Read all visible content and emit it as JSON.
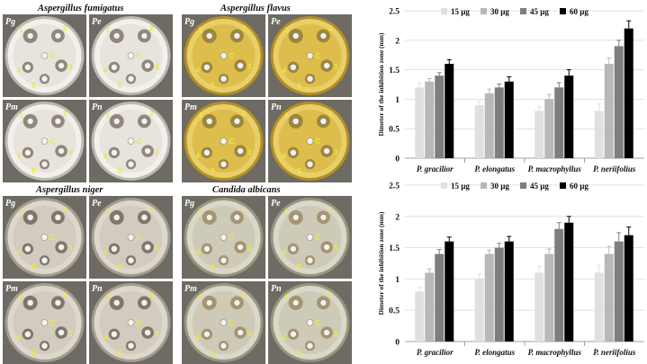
{
  "photo_groups": [
    {
      "id": "fumigatus",
      "title": "Aspergillus fumigatus",
      "agar": "#e4e1da",
      "agar_edge": "#bdb9b0",
      "medium": "#f2f0ea",
      "growth": "#4a3b2c",
      "panels": [
        {
          "label": "Pg",
          "numbers": [
            "1",
            "2",
            "3",
            "4",
            "5"
          ]
        },
        {
          "label": "Pe",
          "numbers": [
            "1",
            "2",
            "3",
            "4",
            "5"
          ]
        },
        {
          "label": "Pm",
          "numbers": [
            "1",
            "2",
            "3",
            "4",
            "5"
          ]
        },
        {
          "label": "Pn",
          "numbers": [
            "1",
            "2",
            "3",
            "4",
            "5"
          ]
        }
      ]
    },
    {
      "id": "flavus",
      "title": "Aspergillus flavus",
      "agar": "#d9b845",
      "agar_edge": "#b38f25",
      "medium": "#e8cf6a",
      "growth": "#6a5a2a",
      "panels": [
        {
          "label": "Pg",
          "numbers": [
            "1",
            "2",
            "3",
            "4",
            "5"
          ]
        },
        {
          "label": "Pe",
          "numbers": [
            "1",
            "2",
            "3",
            "4",
            "5"
          ]
        },
        {
          "label": "Pm",
          "numbers": [
            "1",
            "2",
            "3",
            "4",
            "5"
          ]
        },
        {
          "label": "Pn",
          "numbers": [
            "1",
            "2",
            "3",
            "4",
            "5"
          ]
        }
      ]
    },
    {
      "id": "niger",
      "title": "Aspergillus niger",
      "agar": "#cfc8bd",
      "agar_edge": "#a49c90",
      "medium": "#ddd7cc",
      "growth": "#3a3226",
      "panels": [
        {
          "label": "Pg",
          "numbers": [
            "1",
            "2",
            "3",
            "4",
            "5"
          ]
        },
        {
          "label": "Pe",
          "numbers": [
            "1",
            "2",
            "3",
            "4",
            "5"
          ]
        },
        {
          "label": "Pm",
          "numbers": [
            "1",
            "2",
            "3",
            "4",
            "5"
          ]
        },
        {
          "label": "Pn",
          "numbers": [
            "1",
            "2",
            "3",
            "4",
            "5"
          ]
        }
      ]
    },
    {
      "id": "candida",
      "title": "Candida albicans",
      "agar": "#c9c7b4",
      "agar_edge": "#98957f",
      "medium": "#dad8c8",
      "growth": "#8a6a34",
      "panels": [
        {
          "label": "Pg",
          "numbers": [
            "1",
            "2",
            "3",
            "4",
            "5"
          ]
        },
        {
          "label": "Pe",
          "numbers": [
            "1",
            "2",
            "3",
            "4",
            "5"
          ]
        },
        {
          "label": "Pm",
          "numbers": [
            "1",
            "2",
            "3",
            "4",
            "5"
          ]
        },
        {
          "label": "Pn",
          "numbers": [
            "1",
            "2",
            "3",
            "4",
            "5"
          ]
        }
      ]
    }
  ],
  "photo_center_label": "C",
  "chart_data": [
    {
      "type": "bar",
      "categories": [
        "P. gracilior",
        "P. elongatus",
        "P. macrophyllus",
        "P. neriifolius"
      ],
      "ylabel": "Dimeter of the inhibition zone (mm)",
      "ylim": [
        0,
        2.5
      ],
      "yticks": [
        "0",
        "0.5",
        "1",
        "1.5",
        "2",
        "2.5"
      ],
      "legend_position": "top-center",
      "series": [
        {
          "name": "15 µg",
          "color": "#e0e0e0",
          "values": [
            1.2,
            0.9,
            0.8,
            0.8
          ],
          "errors": [
            0.08,
            0.07,
            0.07,
            0.12
          ]
        },
        {
          "name": "30 µg",
          "color": "#b8b8b8",
          "values": [
            1.3,
            1.1,
            1.0,
            1.6
          ],
          "errors": [
            0.05,
            0.07,
            0.08,
            0.1
          ]
        },
        {
          "name": "45 µg",
          "color": "#7e7e7e",
          "values": [
            1.4,
            1.2,
            1.2,
            1.9
          ],
          "errors": [
            0.05,
            0.06,
            0.08,
            0.1
          ]
        },
        {
          "name": "60 µg",
          "color": "#000000",
          "values": [
            1.6,
            1.3,
            1.4,
            2.2
          ],
          "errors": [
            0.07,
            0.08,
            0.1,
            0.13
          ]
        }
      ]
    },
    {
      "type": "bar",
      "categories": [
        "P. gracilior",
        "P. elongatus",
        "P. macrophyllus",
        "P. neriifolius"
      ],
      "ylabel": "Dimeter of the inhibition zone (mm)",
      "ylim": [
        0,
        2.5
      ],
      "yticks": [
        "0",
        "0.5",
        "1",
        "1.5",
        "2",
        "2.5"
      ],
      "legend_position": "top-center",
      "series": [
        {
          "name": "15 µg",
          "color": "#e0e0e0",
          "values": [
            0.8,
            1.0,
            1.1,
            1.1
          ],
          "errors": [
            0.07,
            0.08,
            0.1,
            0.12
          ]
        },
        {
          "name": "30 µg",
          "color": "#b8b8b8",
          "values": [
            1.1,
            1.4,
            1.4,
            1.4
          ],
          "errors": [
            0.06,
            0.06,
            0.08,
            0.12
          ]
        },
        {
          "name": "45 µg",
          "color": "#7e7e7e",
          "values": [
            1.4,
            1.5,
            1.8,
            1.6
          ],
          "errors": [
            0.07,
            0.07,
            0.1,
            0.14
          ]
        },
        {
          "name": "60 µg",
          "color": "#000000",
          "values": [
            1.6,
            1.6,
            1.9,
            1.7
          ],
          "errors": [
            0.07,
            0.08,
            0.1,
            0.13
          ]
        }
      ]
    }
  ]
}
